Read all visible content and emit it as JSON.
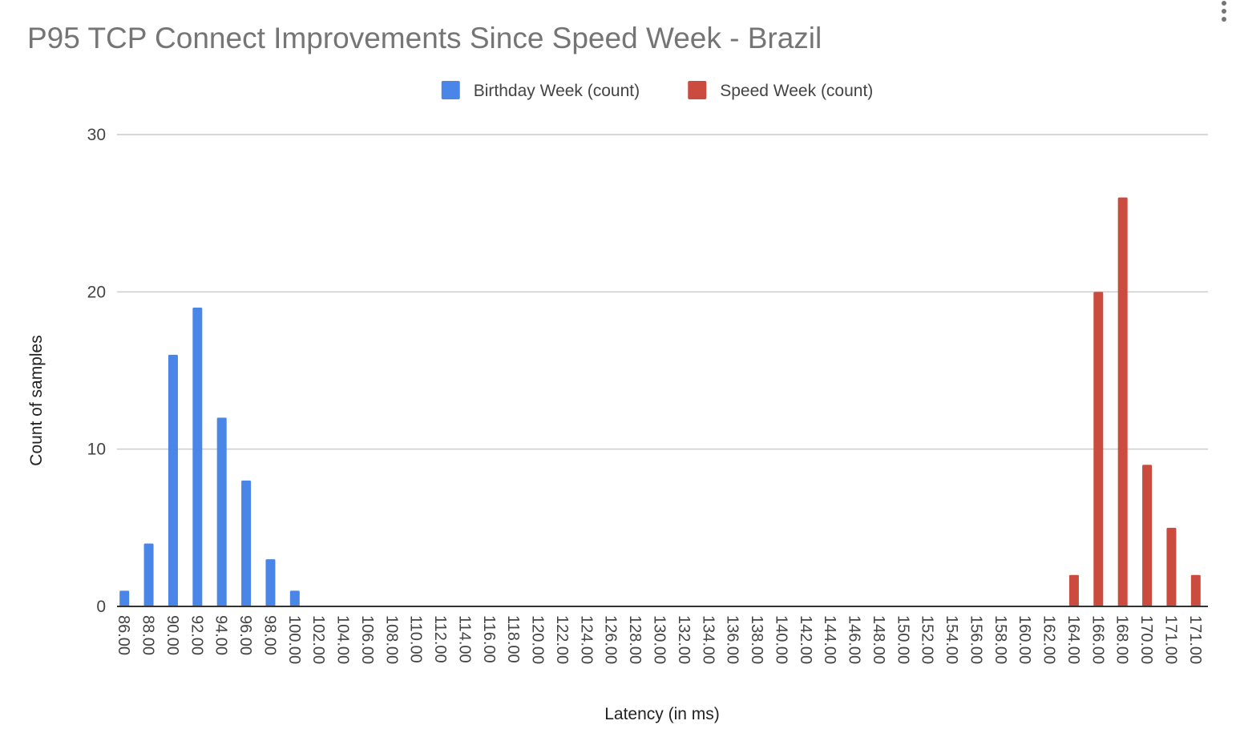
{
  "chart_data": {
    "type": "bar",
    "title": "P95 TCP Connect Improvements Since Speed Week - Brazil",
    "x_label": "Latency (in ms)",
    "y_label": "Count of samples",
    "categories": [
      "86.00",
      "88.00",
      "90.00",
      "92.00",
      "94.00",
      "96.00",
      "98.00",
      "100.00",
      "102.00",
      "104.00",
      "106.00",
      "108.00",
      "110.00",
      "112.00",
      "114.00",
      "116.00",
      "118.00",
      "120.00",
      "122.00",
      "124.00",
      "126.00",
      "128.00",
      "130.00",
      "132.00",
      "134.00",
      "136.00",
      "138.00",
      "140.00",
      "142.00",
      "144.00",
      "146.00",
      "148.00",
      "150.00",
      "152.00",
      "154.00",
      "156.00",
      "158.00",
      "160.00",
      "162.00",
      "164.00",
      "166.00",
      "168.00",
      "170.00",
      "171.00",
      "171.00"
    ],
    "series": [
      {
        "name": "Birthday Week (count)",
        "color": "#4a86e8",
        "values": [
          1,
          4,
          16,
          19,
          12,
          8,
          3,
          1,
          null,
          null,
          null,
          null,
          null,
          null,
          null,
          null,
          null,
          null,
          null,
          null,
          null,
          null,
          null,
          null,
          null,
          null,
          null,
          null,
          null,
          null,
          null,
          null,
          null,
          null,
          null,
          null,
          null,
          null,
          null,
          null,
          null,
          null,
          null,
          null,
          null
        ]
      },
      {
        "name": "Speed Week (count)",
        "color": "#cc4b3f",
        "values": [
          null,
          null,
          null,
          null,
          null,
          null,
          null,
          null,
          null,
          null,
          null,
          null,
          null,
          null,
          null,
          null,
          null,
          null,
          null,
          null,
          null,
          null,
          null,
          null,
          null,
          null,
          null,
          null,
          null,
          null,
          null,
          null,
          null,
          null,
          null,
          null,
          null,
          null,
          null,
          2,
          20,
          26,
          9,
          5,
          2
        ]
      }
    ],
    "ylim": [
      0,
      30
    ],
    "yticks": [
      0,
      10,
      20,
      30
    ],
    "grid": true,
    "legend": "top"
  }
}
